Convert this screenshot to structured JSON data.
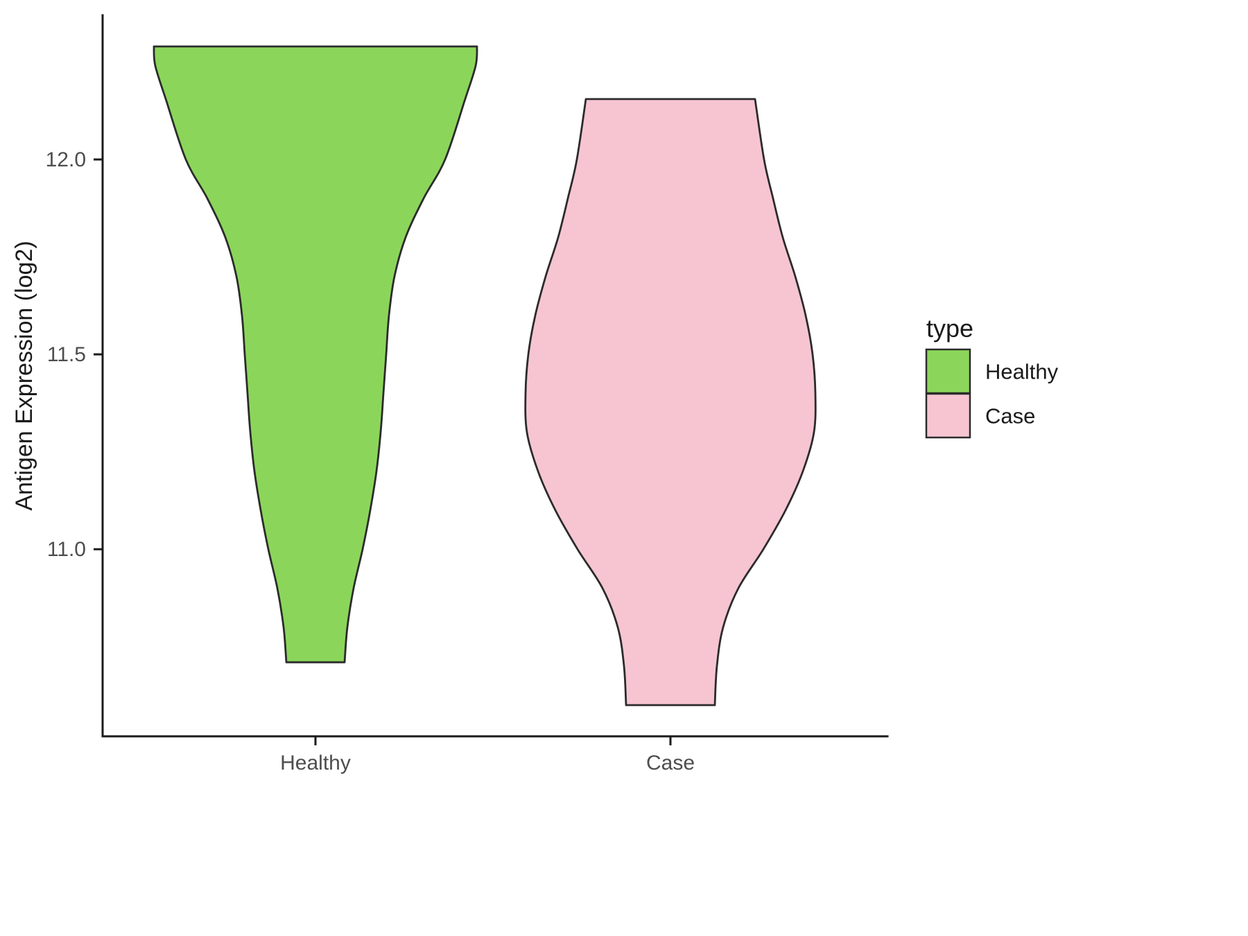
{
  "chart_data": {
    "type": "violin",
    "title": "",
    "xlabel": "",
    "ylabel": "Antigen Expression (log2)",
    "categories": [
      "Healthy",
      "Case"
    ],
    "y_ticks": [
      11.0,
      11.5,
      12.0
    ],
    "y_tick_labels": [
      "11.0",
      "11.5",
      "12.0"
    ],
    "ylim": [
      10.52,
      12.37
    ],
    "grid": false,
    "panel_background": "#FFFFFF",
    "axis_color": "#1A1A1A",
    "axis_text_color": "#4D4D4D",
    "legend": {
      "title": "type",
      "position": "right",
      "entries": [
        {
          "label": "Healthy",
          "color": "#8BD65A"
        },
        {
          "label": "Case",
          "color": "#F6C5D1"
        }
      ]
    },
    "series": [
      {
        "name": "Healthy",
        "fill": "#8BD65A",
        "outline": "#2B2B2B",
        "y_range": [
          10.71,
          12.29
        ],
        "profile": [
          [
            12.29,
            233
          ],
          [
            12.24,
            231
          ],
          [
            12.15,
            215
          ],
          [
            12.0,
            187
          ],
          [
            11.9,
            156
          ],
          [
            11.8,
            130
          ],
          [
            11.7,
            114
          ],
          [
            11.6,
            106
          ],
          [
            11.5,
            102
          ],
          [
            11.4,
            98
          ],
          [
            11.3,
            94
          ],
          [
            11.2,
            88
          ],
          [
            11.1,
            79
          ],
          [
            11.0,
            68
          ],
          [
            10.9,
            55
          ],
          [
            10.8,
            46
          ],
          [
            10.71,
            42
          ]
        ]
      },
      {
        "name": "Case",
        "fill": "#F6C5D1",
        "outline": "#2B2B2B",
        "y_range": [
          10.6,
          12.155
        ],
        "profile": [
          [
            12.155,
            122
          ],
          [
            12.0,
            135
          ],
          [
            11.9,
            148
          ],
          [
            11.8,
            162
          ],
          [
            11.7,
            180
          ],
          [
            11.6,
            195
          ],
          [
            11.5,
            205
          ],
          [
            11.4,
            209
          ],
          [
            11.3,
            207
          ],
          [
            11.2,
            191
          ],
          [
            11.1,
            166
          ],
          [
            11.0,
            134
          ],
          [
            10.9,
            98
          ],
          [
            10.8,
            76
          ],
          [
            10.7,
            67
          ],
          [
            10.6,
            64
          ]
        ]
      }
    ]
  }
}
